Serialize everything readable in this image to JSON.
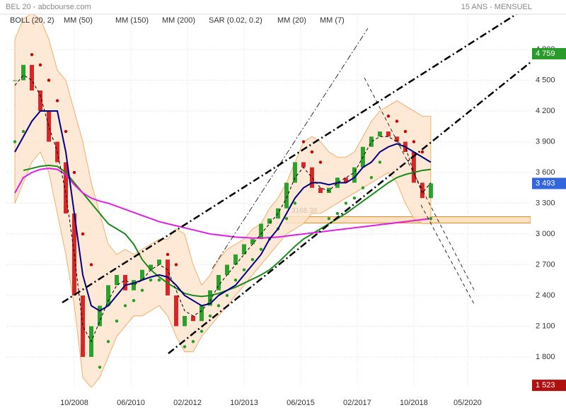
{
  "chart_data": {
    "type": "candlestick",
    "title": "BEL 20 - abcbourse.com",
    "subtitle": "15 ANS - MENSUEL",
    "up_color": "#2ca02c",
    "down_color": "#d62728",
    "x": [
      2007.0,
      2007.25,
      2007.5,
      2007.75,
      2008.0,
      2008.25,
      2008.5,
      2008.75,
      2009.0,
      2009.25,
      2009.5,
      2009.75,
      2010.0,
      2010.25,
      2010.5,
      2010.75,
      2011.0,
      2011.25,
      2011.5,
      2011.75,
      2012.0,
      2012.25,
      2012.5,
      2012.75,
      2013.0,
      2013.25,
      2013.5,
      2013.75,
      2014.0,
      2014.25,
      2014.5,
      2014.75,
      2015.0,
      2015.25,
      2015.5,
      2015.75,
      2016.0,
      2016.25,
      2016.5,
      2016.75,
      2017.0,
      2017.25,
      2017.5,
      2017.75,
      2018.0,
      2018.25,
      2018.5,
      2018.75,
      2019.0,
      2019.25
    ],
    "values": [
      4500,
      4650,
      4400,
      4200,
      3900,
      3700,
      3200,
      2400,
      1800,
      2100,
      2300,
      2500,
      2600,
      2450,
      2550,
      2650,
      2700,
      2750,
      2400,
      2100,
      2200,
      2150,
      2300,
      2450,
      2600,
      2700,
      2800,
      2900,
      2950,
      3100,
      3150,
      3250,
      3500,
      3700,
      3650,
      3450,
      3400,
      3450,
      3550,
      3500,
      3650,
      3850,
      3950,
      4000,
      3950,
      3900,
      3800,
      3500,
      3350,
      3493
    ],
    "series": [
      {
        "name": "BOLL (20, 2)",
        "color": "#f0a050",
        "upper": [
          4900,
          5100,
          5150,
          5100,
          4900,
          4600,
          4500,
          4200,
          3900,
          3500,
          3200,
          2900,
          2800,
          2850,
          2800,
          2850,
          2900,
          2950,
          2950,
          3050,
          3000,
          2700,
          2500,
          2600,
          2750,
          2850,
          2900,
          2950,
          3050,
          3100,
          3250,
          3350,
          3500,
          3700,
          3900,
          3950,
          3900,
          3800,
          3750,
          3750,
          3800,
          3950,
          4100,
          4200,
          4250,
          4300,
          4250,
          4200,
          4150,
          4150
        ],
        "lower": [
          3300,
          3500,
          3700,
          3800,
          3600,
          3200,
          2800,
          2300,
          1600,
          1500,
          1600,
          1800,
          2000,
          2100,
          2200,
          2200,
          2250,
          2300,
          2200,
          2000,
          1850,
          1850,
          2000,
          2100,
          2200,
          2300,
          2400,
          2500,
          2600,
          2700,
          2800,
          2900,
          3000,
          3050,
          3100,
          3200,
          3200,
          3250,
          3300,
          3350,
          3400,
          3450,
          3500,
          3550,
          3600,
          3500,
          3300,
          3150,
          3100,
          3100
        ]
      },
      {
        "name": "MM (50)",
        "color": "#1a8a1a",
        "values": [
          null,
          3620,
          3640,
          3660,
          3670,
          3660,
          3600,
          3500,
          3400,
          3300,
          3200,
          3100,
          3050,
          3000,
          2900,
          2750,
          2650,
          2580,
          2520,
          2470,
          2420,
          2400,
          2390,
          2400,
          2420,
          2450,
          2480,
          2520,
          2560,
          2600,
          2650,
          2720,
          2800,
          2880,
          2950,
          3000,
          3050,
          3100,
          3150,
          3200,
          3260,
          3320,
          3380,
          3440,
          3500,
          3550,
          3580,
          3600,
          3620,
          3630
        ]
      },
      {
        "name": "MM (150)",
        "color": "#f08000",
        "values": [
          null,
          null,
          null,
          null,
          null,
          null,
          null,
          null,
          null,
          null,
          null,
          null,
          null,
          null,
          null,
          null,
          null,
          null,
          null,
          null,
          null,
          null,
          null,
          null,
          null,
          null,
          null,
          null,
          null,
          null,
          null,
          null,
          null,
          null,
          null,
          null,
          null,
          null,
          null,
          null,
          null,
          null,
          null,
          null,
          3100,
          3110,
          3120,
          3130,
          3140,
          3150
        ]
      },
      {
        "name": "MM (200)",
        "color": "#e020e0",
        "values": [
          3400,
          3550,
          3600,
          3630,
          3640,
          3630,
          3580,
          3480,
          3400,
          3350,
          3320,
          3300,
          3270,
          3240,
          3210,
          3180,
          3150,
          3120,
          3100,
          3080,
          3060,
          3040,
          3020,
          3000,
          2990,
          2980,
          2970,
          2965,
          2960,
          2960,
          2965,
          2970,
          2980,
          2990,
          3000,
          3010,
          3020,
          3030,
          3040,
          3050,
          3060,
          3070,
          3080,
          3090,
          3100,
          3110,
          3120,
          3130,
          3140,
          3150
        ]
      },
      {
        "name": "SAR (0.02, 0.2)",
        "color": "#cc0000",
        "color_below": "#22a022",
        "marker": "dots",
        "values": [
          3900,
          4000,
          4750,
          4650,
          4500,
          4300,
          4000,
          3600,
          3000,
          2700,
          1700,
          1950,
          2150,
          2300,
          2350,
          2450,
          2550,
          2550,
          2800,
          2700,
          1900,
          1950,
          2050,
          2200,
          2300,
          2400,
          2550,
          2650,
          2750,
          2850,
          2950,
          3050,
          3150,
          3300,
          3900,
          3800,
          3700,
          3150,
          3200,
          3300,
          3350,
          3450,
          3550,
          3700,
          4150,
          4100,
          4000,
          3900,
          3800,
          3150
        ]
      },
      {
        "name": "MM (20)",
        "color": "#000080",
        "values": [
          3800,
          3950,
          4100,
          4200,
          4200,
          4200,
          3800,
          3200,
          2600,
          2300,
          2250,
          2300,
          2400,
          2500,
          2520,
          2550,
          2580,
          2600,
          2580,
          2500,
          2400,
          2350,
          2300,
          2320,
          2400,
          2450,
          2500,
          2600,
          2700,
          2800,
          2950,
          3050,
          3200,
          3350,
          3450,
          3500,
          3500,
          3480,
          3500,
          3500,
          3550,
          3650,
          3700,
          3800,
          3850,
          3880,
          3850,
          3800,
          3750,
          3700
        ]
      },
      {
        "name": "MM (7)",
        "color": "#000000",
        "style": "dashed",
        "values": [
          4450,
          4550,
          4500,
          4350,
          4050,
          3800,
          3400,
          2800,
          2100,
          1950,
          2150,
          2350,
          2500,
          2550,
          2500,
          2550,
          2650,
          2700,
          2650,
          2450,
          2250,
          2200,
          2250,
          2350,
          2500,
          2600,
          2700,
          2800,
          2900,
          3000,
          3100,
          3200,
          3350,
          3550,
          3650,
          3550,
          3450,
          3420,
          3500,
          3550,
          3600,
          3750,
          3900,
          3950,
          3950,
          3900,
          3850,
          3600,
          3400,
          3500
        ]
      }
    ],
    "support_level": 3168.38,
    "price_tags": [
      {
        "value": 4759,
        "label": "4 759",
        "color": "#2a9a2a"
      },
      {
        "value": 3493,
        "label": "3 493",
        "color": "#3366dd"
      },
      {
        "value": 1523,
        "label": "1 523",
        "color": "#b01010"
      }
    ],
    "xlim": [
      2006.77,
      2022.19
    ],
    "ylim": [
      1503,
      5145
    ],
    "xticks": [
      {
        "value": 2008.75,
        "label": "10/2008"
      },
      {
        "value": 2010.417,
        "label": "06/2010"
      },
      {
        "value": 2012.083,
        "label": "02/2012"
      },
      {
        "value": 2013.75,
        "label": "10/2013"
      },
      {
        "value": 2015.417,
        "label": "06/2015"
      },
      {
        "value": 2017.083,
        "label": "02/2017"
      },
      {
        "value": 2018.75,
        "label": "10/2018"
      },
      {
        "value": 2020.333,
        "label": "05/2020"
      }
    ],
    "yticks": [
      {
        "value": 1800,
        "label": "1 800"
      },
      {
        "value": 2100,
        "label": "2 100"
      },
      {
        "value": 2400,
        "label": "2 400"
      },
      {
        "value": 2700,
        "label": "2 700"
      },
      {
        "value": 3000,
        "label": "3 000"
      },
      {
        "value": 3300,
        "label": "3 300"
      },
      {
        "value": 3600,
        "label": "3 600"
      },
      {
        "value": 3900,
        "label": "3 900"
      },
      {
        "value": 4200,
        "label": "4 200"
      },
      {
        "value": 4500,
        "label": "4 500"
      },
      {
        "value": 4800,
        "label": "4 800"
      }
    ],
    "grid": true
  }
}
